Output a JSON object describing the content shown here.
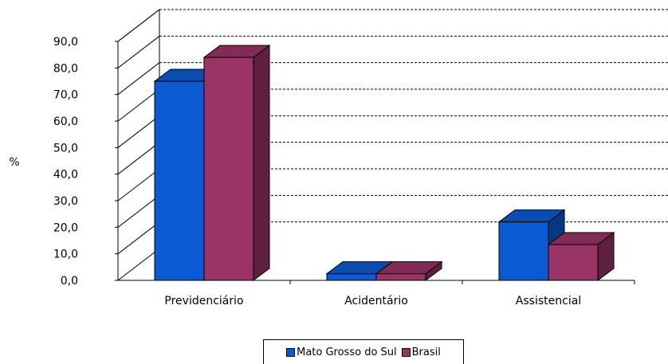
{
  "chart_data": {
    "type": "bar",
    "style": "3d-clustered-column",
    "categories": [
      "Previdenciário",
      "Acidentário",
      "Assistencial"
    ],
    "series": [
      {
        "name": "Mato Grosso do Sul",
        "values": [
          75.0,
          2.5,
          22.0
        ],
        "color": "#0a5ad2"
      },
      {
        "name": "Brasil",
        "values": [
          84.0,
          2.5,
          13.5
        ],
        "color": "#993366"
      }
    ],
    "ylabel": "%",
    "ylim": [
      0,
      90
    ],
    "yticks": [
      "0,0",
      "10,0",
      "20,0",
      "30,0",
      "40,0",
      "50,0",
      "60,0",
      "70,0",
      "80,0",
      "90,0"
    ],
    "grid": "dashed horizontal",
    "legend_position": "bottom"
  }
}
